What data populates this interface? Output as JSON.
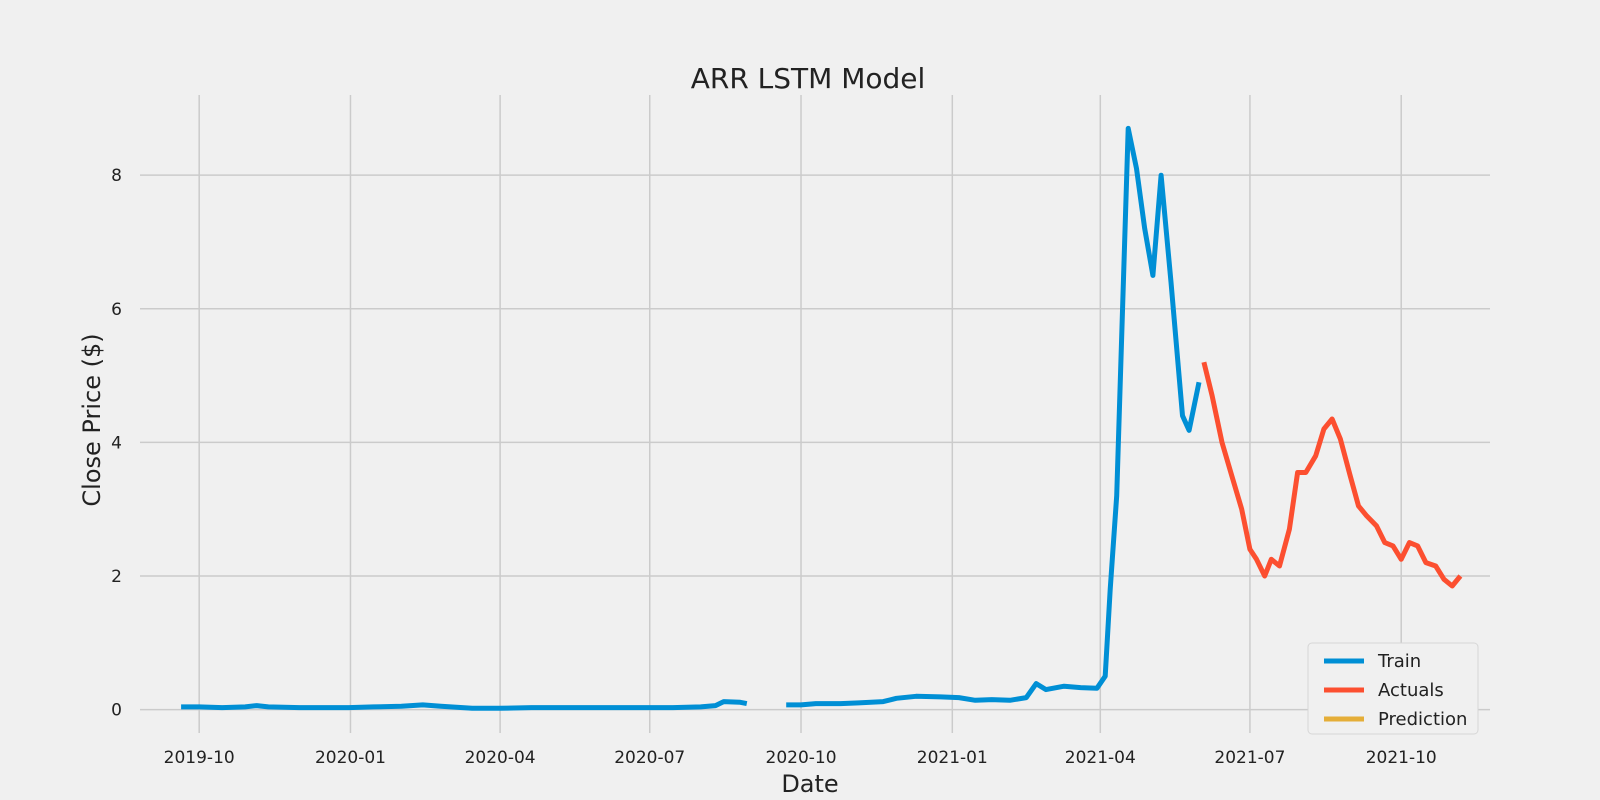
{
  "chart_data": {
    "type": "line",
    "title": "ARR LSTM Model",
    "xlabel": "Date",
    "ylabel": "Close Price ($)",
    "x_ticks": [
      "2019-10",
      "2020-01",
      "2020-04",
      "2020-07",
      "2020-10",
      "2021-01",
      "2021-04",
      "2021-07",
      "2021-10"
    ],
    "y_ticks": [
      "0",
      "2",
      "4",
      "6",
      "8"
    ],
    "xlim": [
      "2019-08-26",
      "2021-11-24"
    ],
    "ylim": [
      -0.35,
      9.2
    ],
    "grid": true,
    "legend_position": "bottom-right",
    "colors": {
      "background": "#f0f0f0",
      "grid": "#cbcbcb"
    },
    "series": [
      {
        "name": "Train",
        "color": "#008fd5",
        "segments": [
          [
            [
              "2019-09-20",
              0.04
            ],
            [
              "2019-10-01",
              0.04
            ],
            [
              "2019-10-15",
              0.03
            ],
            [
              "2019-10-29",
              0.04
            ],
            [
              "2019-11-05",
              0.06
            ],
            [
              "2019-11-12",
              0.04
            ],
            [
              "2019-12-01",
              0.03
            ],
            [
              "2019-12-31",
              0.03
            ],
            [
              "2020-01-15",
              0.04
            ],
            [
              "2020-02-01",
              0.05
            ],
            [
              "2020-02-14",
              0.07
            ],
            [
              "2020-02-25",
              0.05
            ],
            [
              "2020-03-15",
              0.02
            ],
            [
              "2020-04-01",
              0.02
            ],
            [
              "2020-04-20",
              0.03
            ],
            [
              "2020-05-15",
              0.03
            ],
            [
              "2020-06-15",
              0.03
            ],
            [
              "2020-07-15",
              0.03
            ],
            [
              "2020-08-01",
              0.04
            ],
            [
              "2020-08-10",
              0.06
            ],
            [
              "2020-08-15",
              0.12
            ],
            [
              "2020-08-25",
              0.11
            ],
            [
              "2020-08-29",
              0.09
            ]
          ],
          [
            [
              "2020-09-22",
              0.07
            ],
            [
              "2020-10-01",
              0.07
            ],
            [
              "2020-10-10",
              0.09
            ],
            [
              "2020-10-25",
              0.09
            ],
            [
              "2020-11-05",
              0.1
            ],
            [
              "2020-11-20",
              0.12
            ],
            [
              "2020-11-28",
              0.17
            ],
            [
              "2020-12-10",
              0.2
            ],
            [
              "2020-12-25",
              0.19
            ],
            [
              "2021-01-05",
              0.18
            ],
            [
              "2021-01-15",
              0.14
            ],
            [
              "2021-01-25",
              0.15
            ],
            [
              "2021-02-05",
              0.14
            ],
            [
              "2021-02-15",
              0.18
            ],
            [
              "2021-02-21",
              0.39
            ],
            [
              "2021-02-27",
              0.3
            ],
            [
              "2021-03-10",
              0.35
            ],
            [
              "2021-03-20",
              0.33
            ],
            [
              "2021-03-30",
              0.32
            ],
            [
              "2021-04-04",
              0.5
            ],
            [
              "2021-04-07",
              1.8
            ],
            [
              "2021-04-11",
              3.2
            ],
            [
              "2021-04-18",
              8.7
            ],
            [
              "2021-04-23",
              8.1
            ],
            [
              "2021-04-28",
              7.2
            ],
            [
              "2021-05-03",
              6.5
            ],
            [
              "2021-05-08",
              8.0
            ],
            [
              "2021-05-14",
              6.4
            ],
            [
              "2021-05-21",
              4.4
            ],
            [
              "2021-05-25",
              4.18
            ],
            [
              "2021-05-31",
              4.9
            ]
          ]
        ]
      },
      {
        "name": "Actuals",
        "color": "#fc4f30",
        "segments": [
          [
            [
              "2021-06-03",
              5.2
            ],
            [
              "2021-06-08",
              4.7
            ],
            [
              "2021-06-14",
              4.0
            ],
            [
              "2021-06-20",
              3.5
            ],
            [
              "2021-06-26",
              3.0
            ],
            [
              "2021-07-01",
              2.4
            ],
            [
              "2021-07-05",
              2.25
            ],
            [
              "2021-07-10",
              2.0
            ],
            [
              "2021-07-14",
              2.25
            ],
            [
              "2021-07-19",
              2.15
            ],
            [
              "2021-07-25",
              2.7
            ],
            [
              "2021-07-30",
              3.55
            ],
            [
              "2021-08-04",
              3.55
            ],
            [
              "2021-08-10",
              3.8
            ],
            [
              "2021-08-15",
              4.2
            ],
            [
              "2021-08-20",
              4.35
            ],
            [
              "2021-08-25",
              4.05
            ],
            [
              "2021-08-31",
              3.5
            ],
            [
              "2021-09-05",
              3.05
            ],
            [
              "2021-09-10",
              2.9
            ],
            [
              "2021-09-16",
              2.75
            ],
            [
              "2021-09-21",
              2.5
            ],
            [
              "2021-09-26",
              2.45
            ],
            [
              "2021-10-01",
              2.25
            ],
            [
              "2021-10-06",
              2.5
            ],
            [
              "2021-10-11",
              2.45
            ],
            [
              "2021-10-16",
              2.2
            ],
            [
              "2021-10-22",
              2.15
            ],
            [
              "2021-10-27",
              1.95
            ],
            [
              "2021-11-01",
              1.85
            ],
            [
              "2021-11-06",
              2.0
            ]
          ]
        ]
      },
      {
        "name": "Prediction",
        "color": "#e5ae38",
        "segments": []
      }
    ]
  }
}
